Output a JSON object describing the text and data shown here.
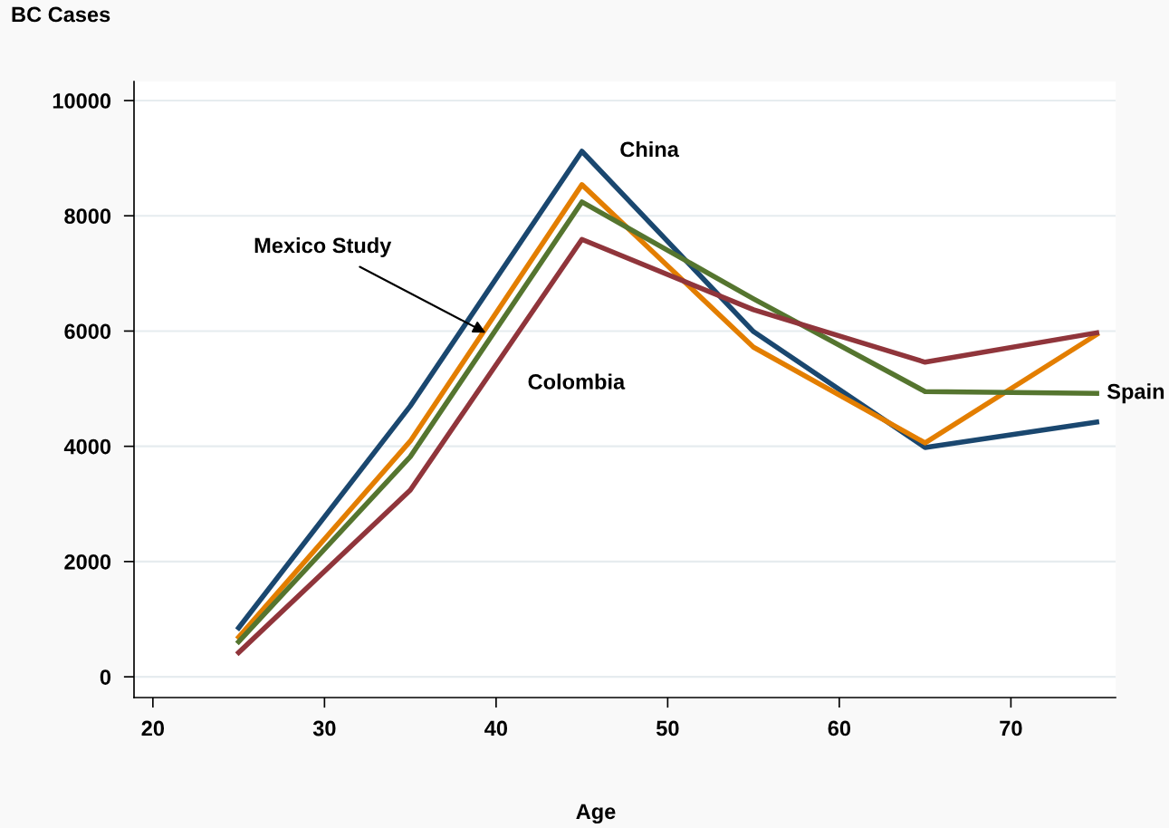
{
  "chart_data": {
    "type": "line",
    "title": "BC Cases",
    "xlabel": "Age",
    "x": [
      25,
      35,
      45,
      55,
      65,
      75
    ],
    "series": [
      {
        "name": "China",
        "color": "#1a476f",
        "values": [
          850,
          4700,
          9120,
          5990,
          3980,
          4420
        ]
      },
      {
        "color": "#e37e00",
        "values": [
          690,
          4090,
          8540,
          5720,
          4060,
          5940
        ]
      },
      {
        "name": "Spain",
        "color": "#55752f",
        "values": [
          610,
          3820,
          8240,
          6560,
          4950,
          4920
        ]
      },
      {
        "name": "Colombia",
        "color": "#90353b",
        "values": [
          420,
          3240,
          7590,
          6370,
          5460,
          5970
        ]
      }
    ],
    "xlim": [
      18.9,
      76.1
    ],
    "ylim": [
      -360,
      10330
    ],
    "xticks": [
      20,
      30,
      40,
      50,
      60,
      70
    ],
    "yticks": [
      0,
      2000,
      4000,
      6000,
      8000,
      10000
    ],
    "annotations": [
      {
        "text": "Mexico Study",
        "x": 39.4,
        "y": 5970
      }
    ],
    "grid": "y",
    "legend": false,
    "marker": "none",
    "line_style": "solid"
  }
}
